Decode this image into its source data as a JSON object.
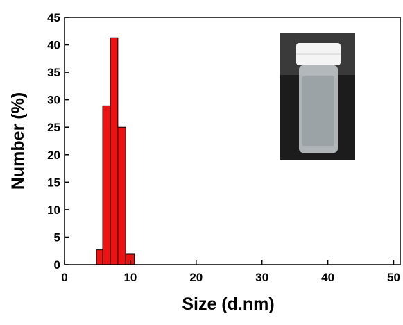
{
  "chart_data": {
    "type": "histogram",
    "x_label": "Size (d.nm)",
    "y_label": "Number (%)",
    "bins": [
      4.85,
      5.8,
      6.95,
      8.1,
      9.3,
      10.6
    ],
    "values": [
      2.7,
      28.9,
      41.3,
      25,
      1.9
    ],
    "color": "#ee1111",
    "xlim": [
      0,
      51
    ],
    "xticks": [
      0,
      10,
      20,
      30,
      40,
      50
    ],
    "ylim": [
      0,
      45
    ],
    "yticks": [
      0,
      5,
      10,
      15,
      20,
      25,
      30,
      35,
      40,
      45
    ]
  }
}
